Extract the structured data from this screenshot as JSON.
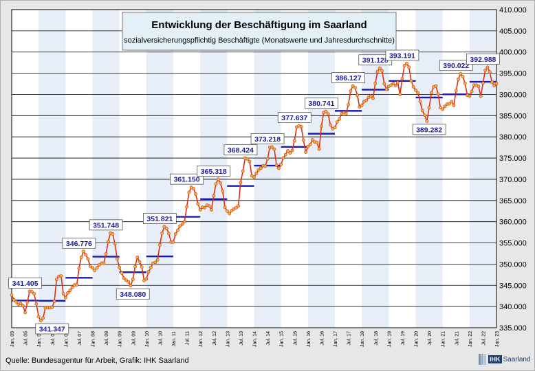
{
  "source_note": "Quelle:  Bundesagentur  für Arbeit, Grafik: IHK Saarland",
  "logo": {
    "ihk": "IHK",
    "name": "Saarland"
  },
  "colors": {
    "series_line": "#e02e10",
    "series_marker": "#f5b040",
    "average_bar": "#1a1ab0",
    "label_text": "#1a1a9a",
    "band_light": "#e8eef8",
    "title_box": "#e3f0f7"
  },
  "chart_data": {
    "type": "line",
    "title": "Entwicklung der Beschäftigung  im Saarland",
    "subtitle": "sozialversicherungspflichtig  Beschäftigte (Monatswerte und Jahresdurchschnitte)",
    "xlabel": "",
    "ylabel": "",
    "ylim": [
      335000,
      410000
    ],
    "yticks": [
      "335.000",
      "340.000",
      "345.000",
      "350.000",
      "355.000",
      "360.000",
      "365.000",
      "370.000",
      "375.000",
      "380.000",
      "385.000",
      "390.000",
      "395.000",
      "400.000",
      "405.000",
      "410.000"
    ],
    "grid": true,
    "xticks": [
      "Jan. 05",
      "Jul. 05",
      "Jan. 06",
      "Jul. 06",
      "Jan. 07",
      "Jul. 07",
      "Jan. 08",
      "Jul. 08",
      "Jan. 09",
      "Jul. 09",
      "Jan. 10",
      "Jul. 10",
      "Jan. 11",
      "Jul. 11",
      "Jan. 12",
      "Jul. 12",
      "Jan. 13",
      "Jul. 13",
      "Jan. 14",
      "Jul. 14",
      "Jan. 15",
      "Jul. 15",
      "Jan. 16",
      "Jul. 16",
      "Jan. 17",
      "Jul. 17",
      "Jan. 18",
      "Jul. 18",
      "Jan. 19",
      "Jul. 19",
      "Jan. 20",
      "Jul. 20",
      "Jan. 21",
      "Jul. 21",
      "Jan. 22",
      "Jul. 22",
      "Jan. 23"
    ],
    "months": [
      "2005-01",
      "2023-01"
    ],
    "monthly_values": [
      342700,
      341600,
      341100,
      340500,
      340700,
      340200,
      338600,
      341000,
      343600,
      343500,
      343000,
      340600,
      337600,
      336700,
      337300,
      339700,
      339700,
      339700,
      339800,
      341200,
      346400,
      347100,
      347200,
      343000,
      342100,
      343200,
      343800,
      344500,
      345100,
      345100,
      349000,
      351600,
      353000,
      352200,
      351200,
      349500,
      349100,
      348500,
      349100,
      349800,
      350200,
      350200,
      352400,
      355300,
      357300,
      357100,
      354800,
      351200,
      349200,
      347900,
      346700,
      346200,
      345800,
      344900,
      346400,
      349400,
      351600,
      350500,
      349300,
      346100,
      346500,
      348200,
      349200,
      350200,
      350400,
      351000,
      354500,
      357300,
      358800,
      358400,
      357200,
      355200,
      355200,
      357100,
      358000,
      359000,
      359400,
      360000,
      363500,
      366900,
      368100,
      367800,
      366500,
      364200,
      362800,
      363400,
      363300,
      363900,
      363700,
      362800,
      366100,
      368900,
      370000,
      369100,
      367200,
      363400,
      362500,
      361900,
      362600,
      363000,
      363300,
      363700,
      369200,
      371900,
      375000,
      374800,
      374200,
      370800,
      370500,
      371400,
      372200,
      372600,
      373200,
      373100,
      374800,
      377500,
      377600,
      377100,
      373300,
      372600,
      373500,
      375000,
      375800,
      376700,
      376200,
      376800,
      379100,
      382300,
      382600,
      382400,
      379200,
      376400,
      377700,
      378200,
      379300,
      378800,
      378700,
      377100,
      382500,
      385700,
      386000,
      385400,
      382800,
      381900,
      382200,
      383500,
      384200,
      385500,
      385700,
      385500,
      387600,
      390800,
      392000,
      391600,
      389800,
      387000,
      387400,
      388300,
      388600,
      389300,
      389600,
      389100,
      392600,
      395400,
      396200,
      395600,
      392500,
      391200,
      391900,
      392200,
      392600,
      392100,
      392800,
      390000,
      393700,
      396800,
      397300,
      396400,
      393200,
      391800,
      391000,
      390400,
      388300,
      386200,
      385100,
      383700,
      386900,
      390400,
      391800,
      392000,
      390100,
      386900,
      386500,
      387200,
      387700,
      387800,
      388300,
      387400,
      390900,
      393600,
      394900,
      394200,
      392600,
      389800,
      389600,
      390700,
      392200,
      392200,
      391900,
      389600,
      392700,
      395700,
      396400,
      395300,
      392900,
      392100,
      392600
    ],
    "annual_averages": [
      {
        "year": 2005,
        "value": 341405,
        "label": "341.405",
        "label_pos": "above"
      },
      {
        "year": 2006,
        "value": 341347,
        "label": "341.347",
        "label_pos": "below"
      },
      {
        "year": 2007,
        "value": 346776,
        "label": "346.776",
        "label_pos": "above"
      },
      {
        "year": 2008,
        "value": 351748,
        "label": "351.748",
        "label_pos": "above"
      },
      {
        "year": 2009,
        "value": 348080,
        "label": "348.080",
        "label_pos": "below"
      },
      {
        "year": 2010,
        "value": 351821,
        "label": "351.821",
        "label_pos": "above"
      },
      {
        "year": 2011,
        "value": 361150,
        "label": "361.150",
        "label_pos": "above"
      },
      {
        "year": 2012,
        "value": 365318,
        "label": "365.318",
        "label_pos": "above"
      },
      {
        "year": 2013,
        "value": 368424,
        "label": "368.424",
        "label_pos": "above"
      },
      {
        "year": 2014,
        "value": 373218,
        "label": "373.218",
        "label_pos": "above"
      },
      {
        "year": 2015,
        "value": 377637,
        "label": "377.637",
        "label_pos": "above"
      },
      {
        "year": 2016,
        "value": 380741,
        "label": "380.741",
        "label_pos": "above"
      },
      {
        "year": 2017,
        "value": 386127,
        "label": "386.127",
        "label_pos": "above"
      },
      {
        "year": 2018,
        "value": 391128,
        "label": "391.128",
        "label_pos": "above"
      },
      {
        "year": 2019,
        "value": 393191,
        "label": "393.191",
        "label_pos": "above"
      },
      {
        "year": 2020,
        "value": 389282,
        "label": "389.282",
        "label_pos": "below"
      },
      {
        "year": 2021,
        "value": 390022,
        "label": "390.022",
        "label_pos": "above"
      },
      {
        "year": 2022,
        "value": 392988,
        "label": "392.988",
        "label_pos": "above"
      }
    ]
  }
}
